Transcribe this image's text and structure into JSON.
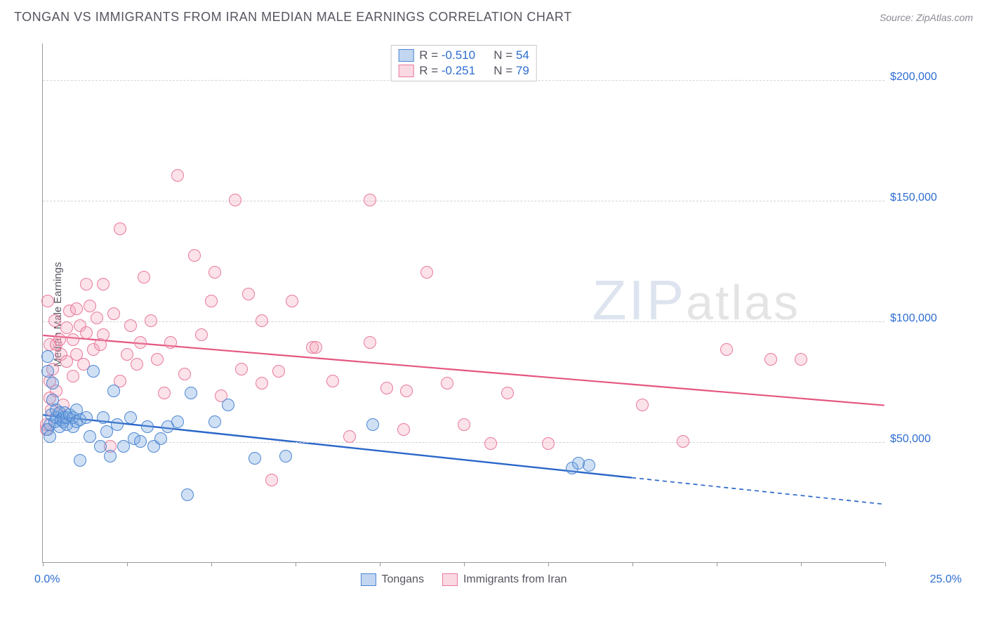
{
  "header": {
    "title": "TONGAN VS IMMIGRANTS FROM IRAN MEDIAN MALE EARNINGS CORRELATION CHART",
    "source": "Source: ZipAtlas.com"
  },
  "chart": {
    "type": "scatter",
    "ylabel": "Median Male Earnings",
    "xlim": [
      0,
      25
    ],
    "ylim": [
      0,
      215000
    ],
    "xtick_positions": [
      0,
      2.5,
      5,
      7.5,
      10,
      12.5,
      15,
      17.5,
      20,
      22.5,
      25
    ],
    "xaxis_label_left": "0.0%",
    "xaxis_label_right": "25.0%",
    "gridlines_y": [
      50000,
      100000,
      150000,
      200000
    ],
    "ytick_labels": [
      "$50,000",
      "$100,000",
      "$150,000",
      "$200,000"
    ],
    "background_color": "#ffffff",
    "grid_color": "#d3d3d3",
    "axis_color": "#999999",
    "point_radius": 9,
    "watermark": {
      "zip": "ZIP",
      "atlas": "atlas"
    },
    "series": [
      {
        "name": "Tongans",
        "color_fill": "rgba(120,165,223,0.35)",
        "color_stroke": "#4b86d3",
        "css_class": "pt-blue",
        "R": "-0.510",
        "N": "54",
        "trend": {
          "x1": 0,
          "y1": 61000,
          "x2": 17.5,
          "y2": 35000,
          "x2_dash": 25,
          "y2_dash": 24000,
          "stroke": "#2a66c8",
          "stroke_width": 2.4
        },
        "points": [
          [
            0.15,
            55000
          ],
          [
            0.15,
            79000
          ],
          [
            0.15,
            85000
          ],
          [
            0.2,
            52000
          ],
          [
            0.2,
            57000
          ],
          [
            0.25,
            61000
          ],
          [
            0.3,
            67000
          ],
          [
            0.3,
            74000
          ],
          [
            0.35,
            58000
          ],
          [
            0.4,
            60000
          ],
          [
            0.4,
            63000
          ],
          [
            0.5,
            56000
          ],
          [
            0.5,
            62000
          ],
          [
            0.55,
            59000
          ],
          [
            0.6,
            58000
          ],
          [
            0.6,
            60000
          ],
          [
            0.65,
            62000
          ],
          [
            0.7,
            57000
          ],
          [
            0.7,
            60000
          ],
          [
            0.8,
            61000
          ],
          [
            0.9,
            56000
          ],
          [
            0.9,
            60000
          ],
          [
            1.0,
            58000
          ],
          [
            1.0,
            63000
          ],
          [
            1.1,
            42000
          ],
          [
            1.1,
            59000
          ],
          [
            1.3,
            60000
          ],
          [
            1.4,
            52000
          ],
          [
            1.5,
            79000
          ],
          [
            1.7,
            48000
          ],
          [
            1.8,
            60000
          ],
          [
            1.9,
            54000
          ],
          [
            2.0,
            44000
          ],
          [
            2.1,
            71000
          ],
          [
            2.2,
            57000
          ],
          [
            2.4,
            48000
          ],
          [
            2.6,
            60000
          ],
          [
            2.7,
            51000
          ],
          [
            2.9,
            50000
          ],
          [
            3.1,
            56000
          ],
          [
            3.3,
            48000
          ],
          [
            3.5,
            51000
          ],
          [
            3.7,
            56000
          ],
          [
            4.0,
            58000
          ],
          [
            4.3,
            28000
          ],
          [
            4.4,
            70000
          ],
          [
            5.1,
            58000
          ],
          [
            5.5,
            65000
          ],
          [
            6.3,
            43000
          ],
          [
            7.2,
            44000
          ],
          [
            9.8,
            57000
          ],
          [
            15.7,
            39000
          ],
          [
            15.9,
            41000
          ],
          [
            16.2,
            40000
          ]
        ]
      },
      {
        "name": "Immigrants from Iran",
        "color_fill": "rgba(244,160,182,0.3)",
        "color_stroke": "#e77a9c",
        "css_class": "pt-pink",
        "R": "-0.251",
        "N": "79",
        "trend": {
          "x1": 0,
          "y1": 94000,
          "x2": 25,
          "y2": 65000,
          "stroke": "#e4567f",
          "stroke_width": 2.2
        },
        "points": [
          [
            0.1,
            55000
          ],
          [
            0.1,
            57000
          ],
          [
            0.15,
            108000
          ],
          [
            0.2,
            68000
          ],
          [
            0.2,
            75000
          ],
          [
            0.2,
            90000
          ],
          [
            0.25,
            63000
          ],
          [
            0.3,
            80000
          ],
          [
            0.35,
            100000
          ],
          [
            0.4,
            71000
          ],
          [
            0.4,
            90000
          ],
          [
            0.5,
            92000
          ],
          [
            0.55,
            86000
          ],
          [
            0.6,
            65000
          ],
          [
            0.7,
            83000
          ],
          [
            0.7,
            97000
          ],
          [
            0.8,
            104000
          ],
          [
            0.9,
            77000
          ],
          [
            0.9,
            92000
          ],
          [
            1.0,
            86000
          ],
          [
            1.0,
            105000
          ],
          [
            1.1,
            98000
          ],
          [
            1.2,
            82000
          ],
          [
            1.3,
            115000
          ],
          [
            1.3,
            95000
          ],
          [
            1.4,
            106000
          ],
          [
            1.5,
            88000
          ],
          [
            1.6,
            101000
          ],
          [
            1.7,
            90000
          ],
          [
            1.8,
            94000
          ],
          [
            1.8,
            115000
          ],
          [
            2.0,
            48000
          ],
          [
            2.1,
            103000
          ],
          [
            2.3,
            75000
          ],
          [
            2.3,
            138000
          ],
          [
            2.5,
            86000
          ],
          [
            2.6,
            98000
          ],
          [
            2.8,
            82000
          ],
          [
            2.9,
            91000
          ],
          [
            3.0,
            118000
          ],
          [
            3.2,
            100000
          ],
          [
            3.4,
            84000
          ],
          [
            3.6,
            70000
          ],
          [
            3.8,
            91000
          ],
          [
            4.0,
            160000
          ],
          [
            4.2,
            78000
          ],
          [
            4.5,
            127000
          ],
          [
            4.7,
            94000
          ],
          [
            5.0,
            108000
          ],
          [
            5.1,
            120000
          ],
          [
            5.3,
            69000
          ],
          [
            5.7,
            150000
          ],
          [
            5.9,
            80000
          ],
          [
            6.1,
            111000
          ],
          [
            6.5,
            74000
          ],
          [
            6.5,
            100000
          ],
          [
            6.8,
            34000
          ],
          [
            7.0,
            79000
          ],
          [
            7.4,
            108000
          ],
          [
            8.0,
            89000
          ],
          [
            8.1,
            89000
          ],
          [
            8.6,
            75000
          ],
          [
            9.1,
            52000
          ],
          [
            9.7,
            91000
          ],
          [
            9.7,
            150000
          ],
          [
            10.2,
            72000
          ],
          [
            10.7,
            55000
          ],
          [
            10.8,
            71000
          ],
          [
            11.4,
            120000
          ],
          [
            12.0,
            74000
          ],
          [
            12.5,
            57000
          ],
          [
            13.3,
            49000
          ],
          [
            13.8,
            70000
          ],
          [
            15.0,
            49000
          ],
          [
            17.8,
            65000
          ],
          [
            19.0,
            50000
          ],
          [
            20.3,
            88000
          ],
          [
            21.6,
            84000
          ],
          [
            22.5,
            84000
          ]
        ]
      }
    ],
    "legend_bottom": [
      {
        "label": "Tongans",
        "swatch_class": "sw-blue"
      },
      {
        "label": "Immigrants from Iran",
        "swatch_class": "sw-pink"
      }
    ]
  }
}
